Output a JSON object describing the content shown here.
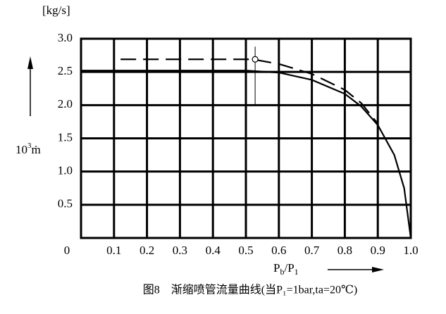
{
  "chart_data": {
    "type": "line",
    "unit_label": "[kg/s]",
    "ylabel": {
      "base": "10",
      "sup": "3",
      "symbol": "ṁ"
    },
    "xlabel": {
      "p1": "P",
      "s1": "b",
      "p2": "/P",
      "s2": "1"
    },
    "caption": "图8　渐缩喷管流量曲线(当P₁=1bar,ta=20℃)",
    "xlim": [
      0,
      1
    ],
    "ylim": [
      0,
      3
    ],
    "xticks": [
      0,
      0.1,
      0.2,
      0.3,
      0.4,
      0.5,
      0.6,
      0.7,
      0.8,
      0.9,
      {
        "value": 1,
        "label": "1.0"
      }
    ],
    "yticks": [
      0.5,
      {
        "value": 1,
        "label": "1.0"
      },
      1.5,
      {
        "value": 2,
        "label": "2.0"
      },
      2.5,
      {
        "value": 3,
        "label": "3.0"
      }
    ],
    "grid": true,
    "series": [
      {
        "style": "solid",
        "color": "#000000",
        "x": [
          0,
          0.5,
          0.6,
          0.7,
          0.8,
          0.85,
          0.9,
          0.95,
          0.98,
          1
        ],
        "values": [
          2.52,
          2.52,
          2.49,
          2.38,
          2.17,
          1.98,
          1.7,
          1.25,
          0.75,
          0
        ]
      },
      {
        "style": "dashed",
        "color": "#000000",
        "x": [
          0.12,
          0.52,
          0.6,
          0.7,
          0.8,
          0.85,
          0.9
        ],
        "values": [
          2.69,
          2.69,
          2.62,
          2.47,
          2.23,
          2.03,
          1.72
        ]
      }
    ],
    "critical_point": {
      "x": 0.528,
      "y": 2.69
    }
  }
}
